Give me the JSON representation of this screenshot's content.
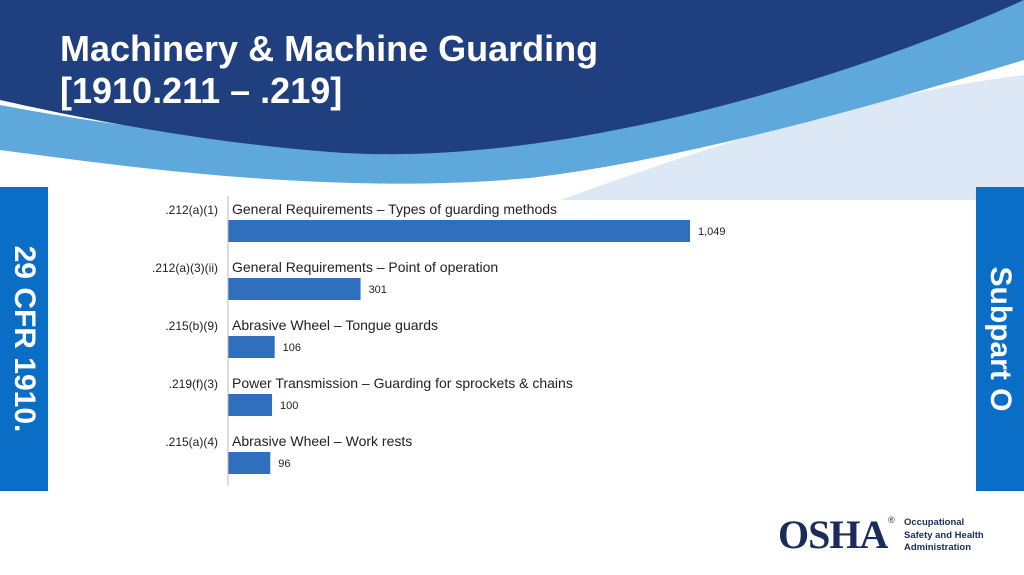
{
  "header": {
    "title_line1": "Machinery & Machine Guarding",
    "title_line2": "[1910.211 – .219]"
  },
  "side_left": {
    "text": "29 CFR 1910."
  },
  "side_right": {
    "text": "Subpart O"
  },
  "colors": {
    "navy": "#1f3f7e",
    "blue": "#0a6ec7",
    "light_blue": "#5fa8dc",
    "bar": "#2f6fbe",
    "pale": "#dce8f5"
  },
  "chart_data": {
    "type": "bar",
    "orientation": "horizontal",
    "codes": [
      ".212(a)(1)",
      ".212(a)(3)(ii)",
      ".215(b)(9)",
      ".219(f)(3)",
      ".215(a)(4)"
    ],
    "categories": [
      "General Requirements – Types of guarding methods",
      "General Requirements – Point of operation",
      "Abrasive Wheel – Tongue guards",
      "Power Transmission – Guarding for sprockets & chains",
      "Abrasive Wheel – Work rests"
    ],
    "values": [
      1049,
      301,
      106,
      100,
      96
    ],
    "value_labels": [
      "1,049",
      "301",
      "106",
      "100",
      "96"
    ],
    "xlim": [
      0,
      1049
    ],
    "grid": false
  },
  "logo": {
    "mark": "OSHA",
    "reg": "®",
    "line1": "Occupational",
    "line2": "Safety and Health",
    "line3": "Administration",
    "icon": "osha-logo"
  }
}
